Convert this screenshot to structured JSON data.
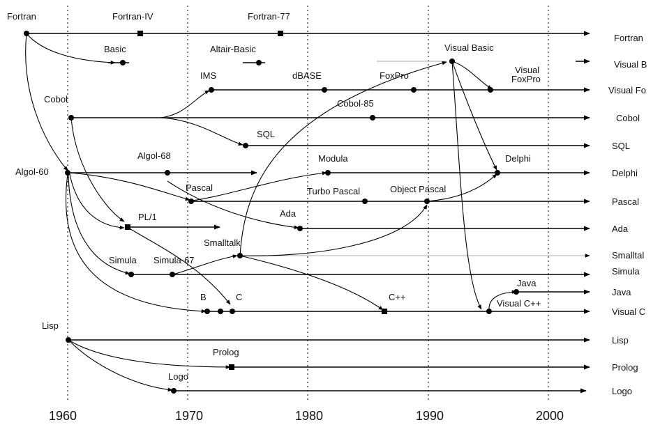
{
  "diagram": {
    "years": [
      "1960",
      "1970",
      "1980",
      "1990",
      "2000"
    ],
    "lanes": {
      "fortran": "Fortran",
      "visual_basic": "Visual B",
      "visual_foxpro": "Visual Fo",
      "cobol": "Cobol",
      "sql": "SQL",
      "delphi": "Delphi",
      "pascal": "Pascal",
      "ada": "Ada",
      "smalltalk": "Smalltal",
      "simula": "Simula",
      "java": "Java",
      "visual_cpp": "Visual C",
      "lisp": "Lisp",
      "prolog": "Prolog",
      "logo": "Logo"
    },
    "nodes": {
      "fortran": "Fortran",
      "fortran_iv": "Fortran-IV",
      "fortran_77": "Fortran-77",
      "basic": "Basic",
      "altair_basic": "Altair-Basic",
      "visual_basic": "Visual Basic",
      "visual_foxpro_1": "Visual",
      "visual_foxpro_2": "FoxPro",
      "ims": "IMS",
      "dbase": "dBASE",
      "foxpro": "FoxPro",
      "cobol": "Cobol",
      "cobol_85": "Cobol-85",
      "sql": "SQL",
      "algol_68": "Algol-68",
      "algol_60": "Algol-60",
      "modula": "Modula",
      "delphi": "Delphi",
      "pascal": "Pascal",
      "turbo_pascal": "Turbo Pascal",
      "object_pascal": "Object Pascal",
      "ada": "Ada",
      "pl1": "PL/1",
      "smalltalk": "Smalltalk",
      "simula": "Simula",
      "simula_67": "Simula-67",
      "java": "Java",
      "b": "B",
      "c": "C",
      "cpp": "C++",
      "visual_cpp": "Visual C++",
      "lisp": "Lisp",
      "prolog": "Prolog",
      "logo": "Logo"
    }
  }
}
